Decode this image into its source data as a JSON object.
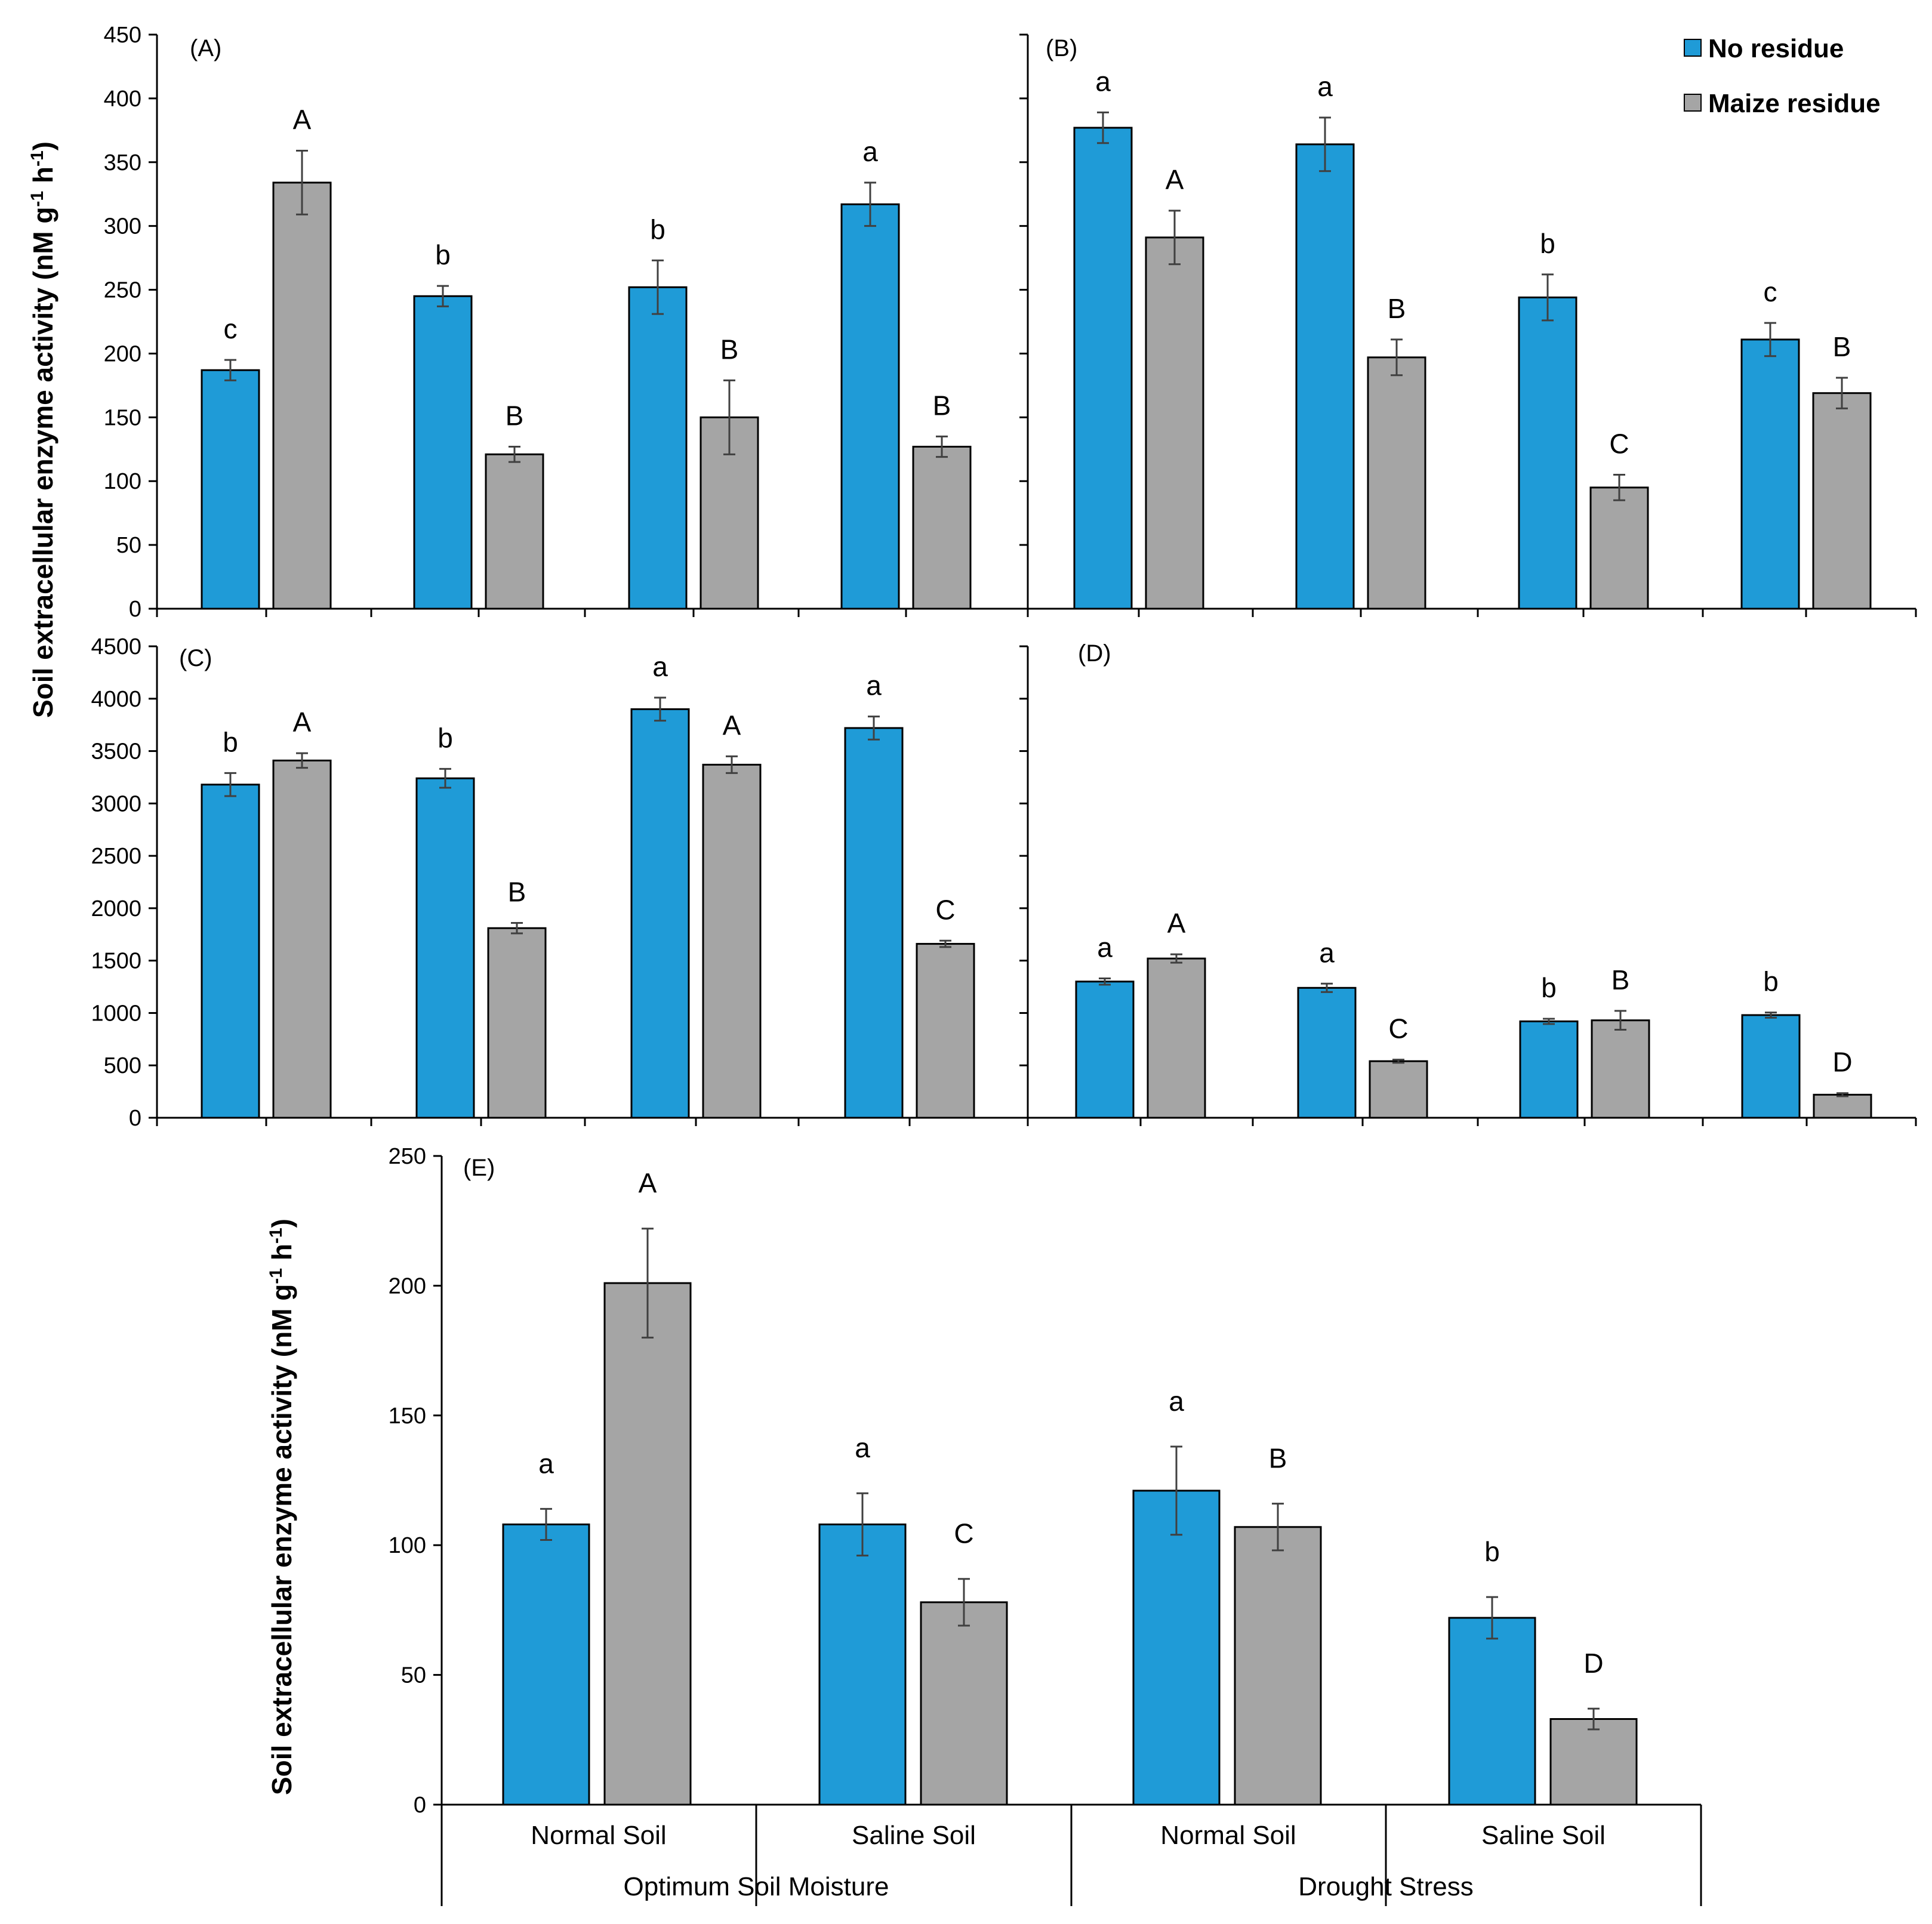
{
  "legend": {
    "items": [
      {
        "label": "No residue",
        "color": "#1f9bd7"
      },
      {
        "label": "Maize residue",
        "color": "#a5a5a5"
      }
    ],
    "placement": "top-right of panel B"
  },
  "y_axis_title": "Soil extracellular enzyme activity (nM g",
  "y_axis_title_sup1": "-1",
  "y_axis_title_mid": " h",
  "y_axis_title_sup2": "-1",
  "y_axis_title_end": ")",
  "categories": [
    "Normal Soil",
    "Saline Soil",
    "Normal Soil",
    "Saline Soil"
  ],
  "groups": [
    "Optimum Soil Moisture",
    "Drought Stress"
  ],
  "colors": {
    "no_residue": "#1f9bd7",
    "maize_residue": "#a5a5a5",
    "axis": "#000000",
    "error_bar": "#404040"
  },
  "chart_data": [
    {
      "panel": "(A)",
      "type": "bar",
      "ylim": [
        0,
        450
      ],
      "yticks": [
        0,
        50,
        100,
        150,
        200,
        250,
        300,
        350,
        400,
        450
      ],
      "show_tick_labels": true,
      "series": [
        {
          "name": "No residue",
          "values": [
            187,
            245,
            252,
            317
          ],
          "errors": [
            8,
            8,
            21,
            17
          ],
          "letters": [
            "c",
            "b",
            "b",
            "a"
          ]
        },
        {
          "name": "Maize residue",
          "values": [
            334,
            121,
            150,
            127
          ],
          "errors": [
            25,
            6,
            29,
            8
          ],
          "letters": [
            "A",
            "B",
            "B",
            "B"
          ]
        }
      ]
    },
    {
      "panel": "(B)",
      "type": "bar",
      "ylim": [
        0,
        450
      ],
      "yticks": [
        0,
        50,
        100,
        150,
        200,
        250,
        300,
        350,
        400,
        450
      ],
      "show_tick_labels": false,
      "series": [
        {
          "name": "No residue",
          "values": [
            377,
            364,
            244,
            211
          ],
          "errors": [
            12,
            21,
            18,
            13
          ],
          "letters": [
            "a",
            "a",
            "b",
            "c"
          ]
        },
        {
          "name": "Maize residue",
          "values": [
            291,
            197,
            95,
            169
          ],
          "errors": [
            21,
            14,
            10,
            12
          ],
          "letters": [
            "A",
            "B",
            "C",
            "B"
          ]
        }
      ]
    },
    {
      "panel": "(C)",
      "type": "bar",
      "ylim": [
        0,
        4500
      ],
      "yticks": [
        0,
        500,
        1000,
        1500,
        2000,
        2500,
        3000,
        3500,
        4000,
        4500
      ],
      "show_tick_labels": true,
      "series": [
        {
          "name": "No residue",
          "values": [
            3180,
            3240,
            3900,
            3720
          ],
          "errors": [
            110,
            90,
            110,
            110
          ],
          "letters": [
            "b",
            "b",
            "a",
            "a"
          ]
        },
        {
          "name": "Maize residue",
          "values": [
            3410,
            1810,
            3370,
            1660
          ],
          "errors": [
            70,
            50,
            80,
            30
          ],
          "letters": [
            "A",
            "B",
            "A",
            "C"
          ]
        }
      ]
    },
    {
      "panel": "(D)",
      "type": "bar",
      "ylim": [
        0,
        4500
      ],
      "yticks": [
        0,
        500,
        1000,
        1500,
        2000,
        2500,
        3000,
        3500,
        4000,
        4500
      ],
      "show_tick_labels": false,
      "series": [
        {
          "name": "No residue",
          "values": [
            1300,
            1240,
            920,
            980
          ],
          "errors": [
            30,
            40,
            25,
            25
          ],
          "letters": [
            "a",
            "a",
            "b",
            "b"
          ]
        },
        {
          "name": "Maize residue",
          "values": [
            1520,
            540,
            930,
            220
          ],
          "errors": [
            40,
            15,
            90,
            15
          ],
          "letters": [
            "A",
            "C",
            "B",
            "D"
          ]
        }
      ]
    },
    {
      "panel": "(E)",
      "type": "bar",
      "ylim": [
        0,
        250
      ],
      "yticks": [
        0,
        50,
        100,
        150,
        200,
        250
      ],
      "show_tick_labels": true,
      "categories": [
        "Normal Soil",
        "Saline Soil",
        "Normal Soil",
        "Saline Soil"
      ],
      "groups": [
        "Optimum Soil Moisture",
        "Drought Stress"
      ],
      "series": [
        {
          "name": "No residue",
          "values": [
            108,
            108,
            121,
            72
          ],
          "errors": [
            6,
            12,
            17,
            8
          ],
          "letters": [
            "a",
            "a",
            "a",
            "b"
          ]
        },
        {
          "name": "Maize residue",
          "values": [
            201,
            78,
            107,
            33
          ],
          "errors": [
            21,
            9,
            9,
            4
          ],
          "letters": [
            "A",
            "C",
            "B",
            "D"
          ]
        }
      ]
    }
  ]
}
